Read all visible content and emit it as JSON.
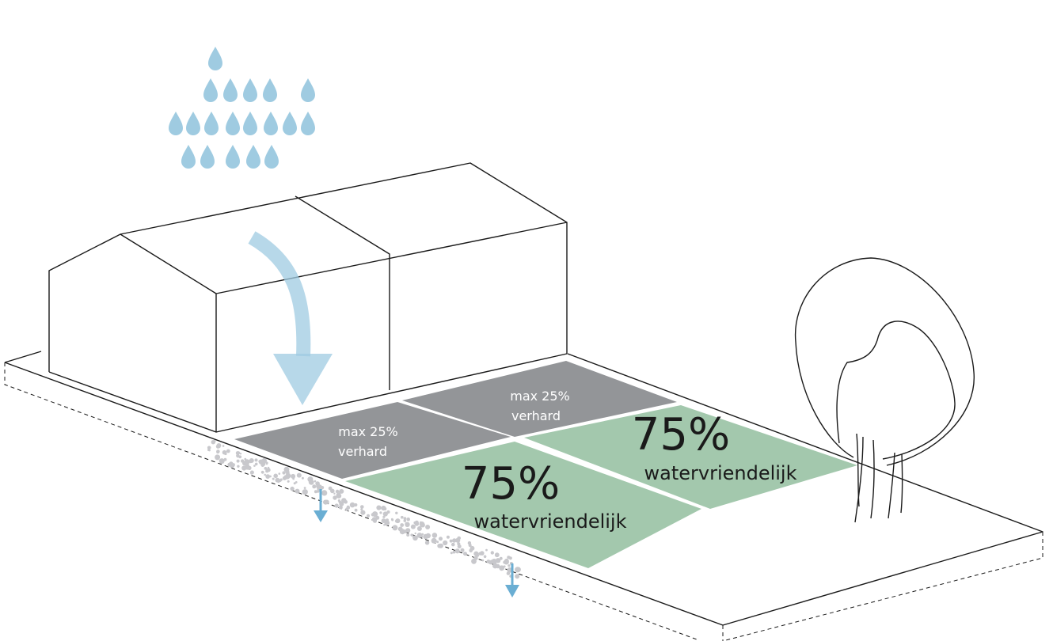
{
  "colors": {
    "paved": "#939598",
    "water_friendly": "#a3c8ad",
    "water": "#9fcbe1",
    "outline": "#1a1a1a",
    "gravel": "#c8c8cc"
  },
  "plot_back": {
    "paved_label_line1": "max 25%",
    "paved_label_line2": "verhard",
    "green_percent": "75%",
    "green_label": "watervriendelijk"
  },
  "plot_front": {
    "paved_label_line1": "max 25%",
    "paved_label_line2": "verhard",
    "green_percent": "75%",
    "green_label": "watervriendelijk"
  },
  "icons": {
    "rain": "raindrops-icon",
    "runoff": "curved-arrow-icon",
    "infiltration": "down-arrow-icon"
  }
}
